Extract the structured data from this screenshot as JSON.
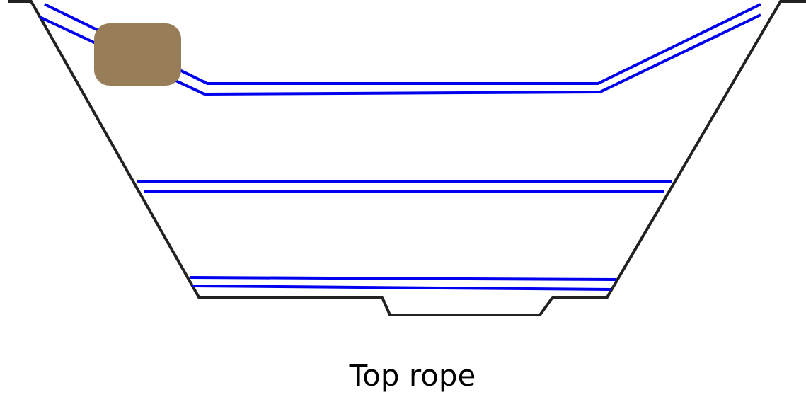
{
  "caption": "Top rope",
  "colors": {
    "trough_outline": "#222222",
    "rope": "#0000ee",
    "boulder": "#977d58",
    "background": "#ffffff"
  },
  "elements": {
    "trough": "trapezoid-channel",
    "boulder": "rounded-rectangle",
    "ropes": [
      "top-rope-pair",
      "middle-rope-pair",
      "bottom-rope-pair"
    ]
  }
}
